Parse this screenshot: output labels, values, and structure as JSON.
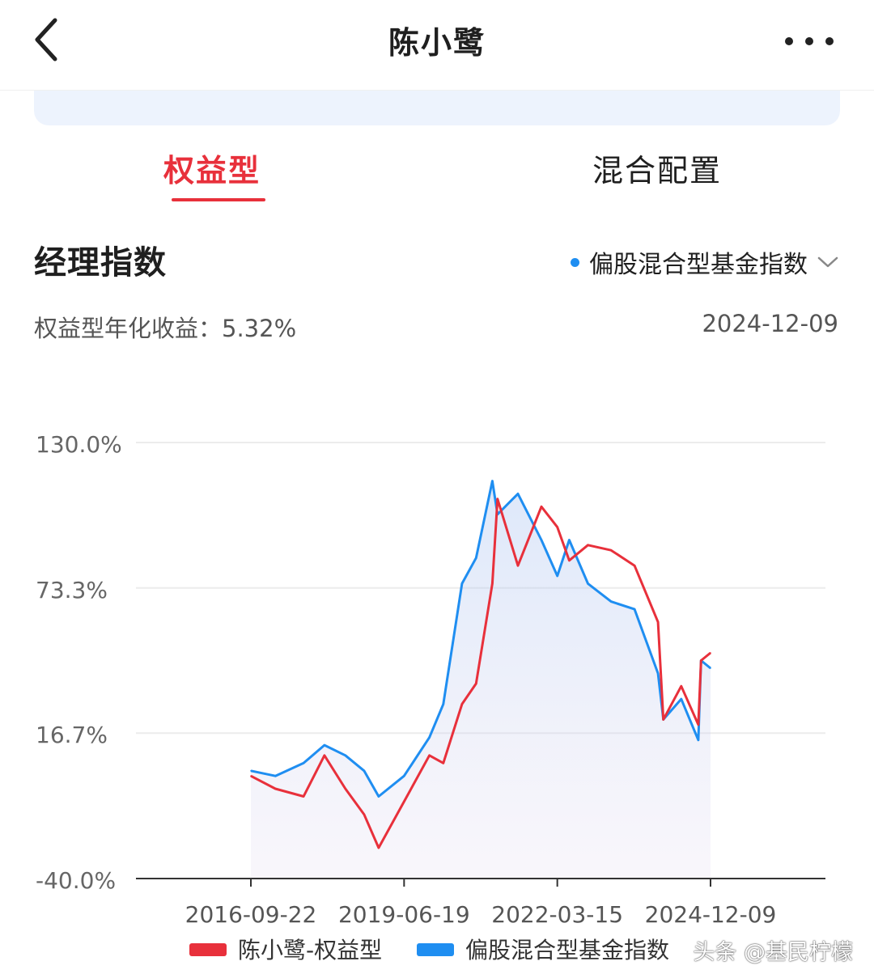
{
  "header": {
    "title": "陈小鹭",
    "back_icon": "chevron-left-icon",
    "more_icon": "more-dots-icon"
  },
  "tabs": [
    {
      "label": "权益型",
      "active": true
    },
    {
      "label": "混合配置",
      "active": false
    }
  ],
  "section": {
    "title": "经理指数",
    "index_selector": {
      "label": "偏股混合型基金指数",
      "dot_color": "#1f8ef1",
      "chevron_icon": "chevron-down-icon"
    }
  },
  "summary": {
    "annual_return": "权益型年化收益：5.32%",
    "date": "2024-12-09"
  },
  "chart_data": {
    "type": "line",
    "y_ticks": [
      "130.0%",
      "73.3%",
      "16.7%",
      "-40.0%"
    ],
    "y_tick_values": [
      130.0,
      73.3,
      16.7,
      -40.0
    ],
    "ylim": [
      -40.0,
      130.0
    ],
    "x_ticks": [
      "2016-09-22",
      "2019-06-19",
      "2022-03-15",
      "2024-12-09"
    ],
    "x": [
      "2016-09-22",
      "2017-03-01",
      "2017-09-01",
      "2018-01-15",
      "2018-06-01",
      "2018-10-01",
      "2019-01-04",
      "2019-06-19",
      "2019-12-01",
      "2020-03-01",
      "2020-07-01",
      "2020-10-01",
      "2021-01-15",
      "2021-02-18",
      "2021-07-01",
      "2021-12-01",
      "2022-03-15",
      "2022-06-01",
      "2022-10-01",
      "2023-03-01",
      "2023-08-01",
      "2024-01-01",
      "2024-02-05",
      "2024-06-01",
      "2024-09-20",
      "2024-10-08",
      "2024-12-09"
    ],
    "grid": true,
    "legend_position": "bottom",
    "series": [
      {
        "name": "陈小鹭-权益型",
        "color": "#e8303b",
        "values": [
          0.0,
          -5.0,
          -8.0,
          8.0,
          -5.0,
          -15.0,
          -28.0,
          -10.0,
          8.0,
          5.0,
          28.0,
          36.0,
          75.0,
          108.0,
          82.0,
          105.0,
          97.0,
          84.0,
          90.0,
          88.0,
          82.0,
          60.0,
          22.0,
          35.0,
          20.0,
          45.0,
          48.0
        ]
      },
      {
        "name": "偏股混合型基金指数",
        "color": "#1f8ef1",
        "values": [
          2.0,
          0.0,
          5.0,
          12.0,
          8.0,
          2.0,
          -8.0,
          0.0,
          15.0,
          28.0,
          75.0,
          85.0,
          115.0,
          102.0,
          110.0,
          92.0,
          78.0,
          92.0,
          75.0,
          68.0,
          65.0,
          40.0,
          22.0,
          30.0,
          14.0,
          45.0,
          42.0
        ]
      }
    ]
  },
  "watermark": "头条 @基民柠檬"
}
